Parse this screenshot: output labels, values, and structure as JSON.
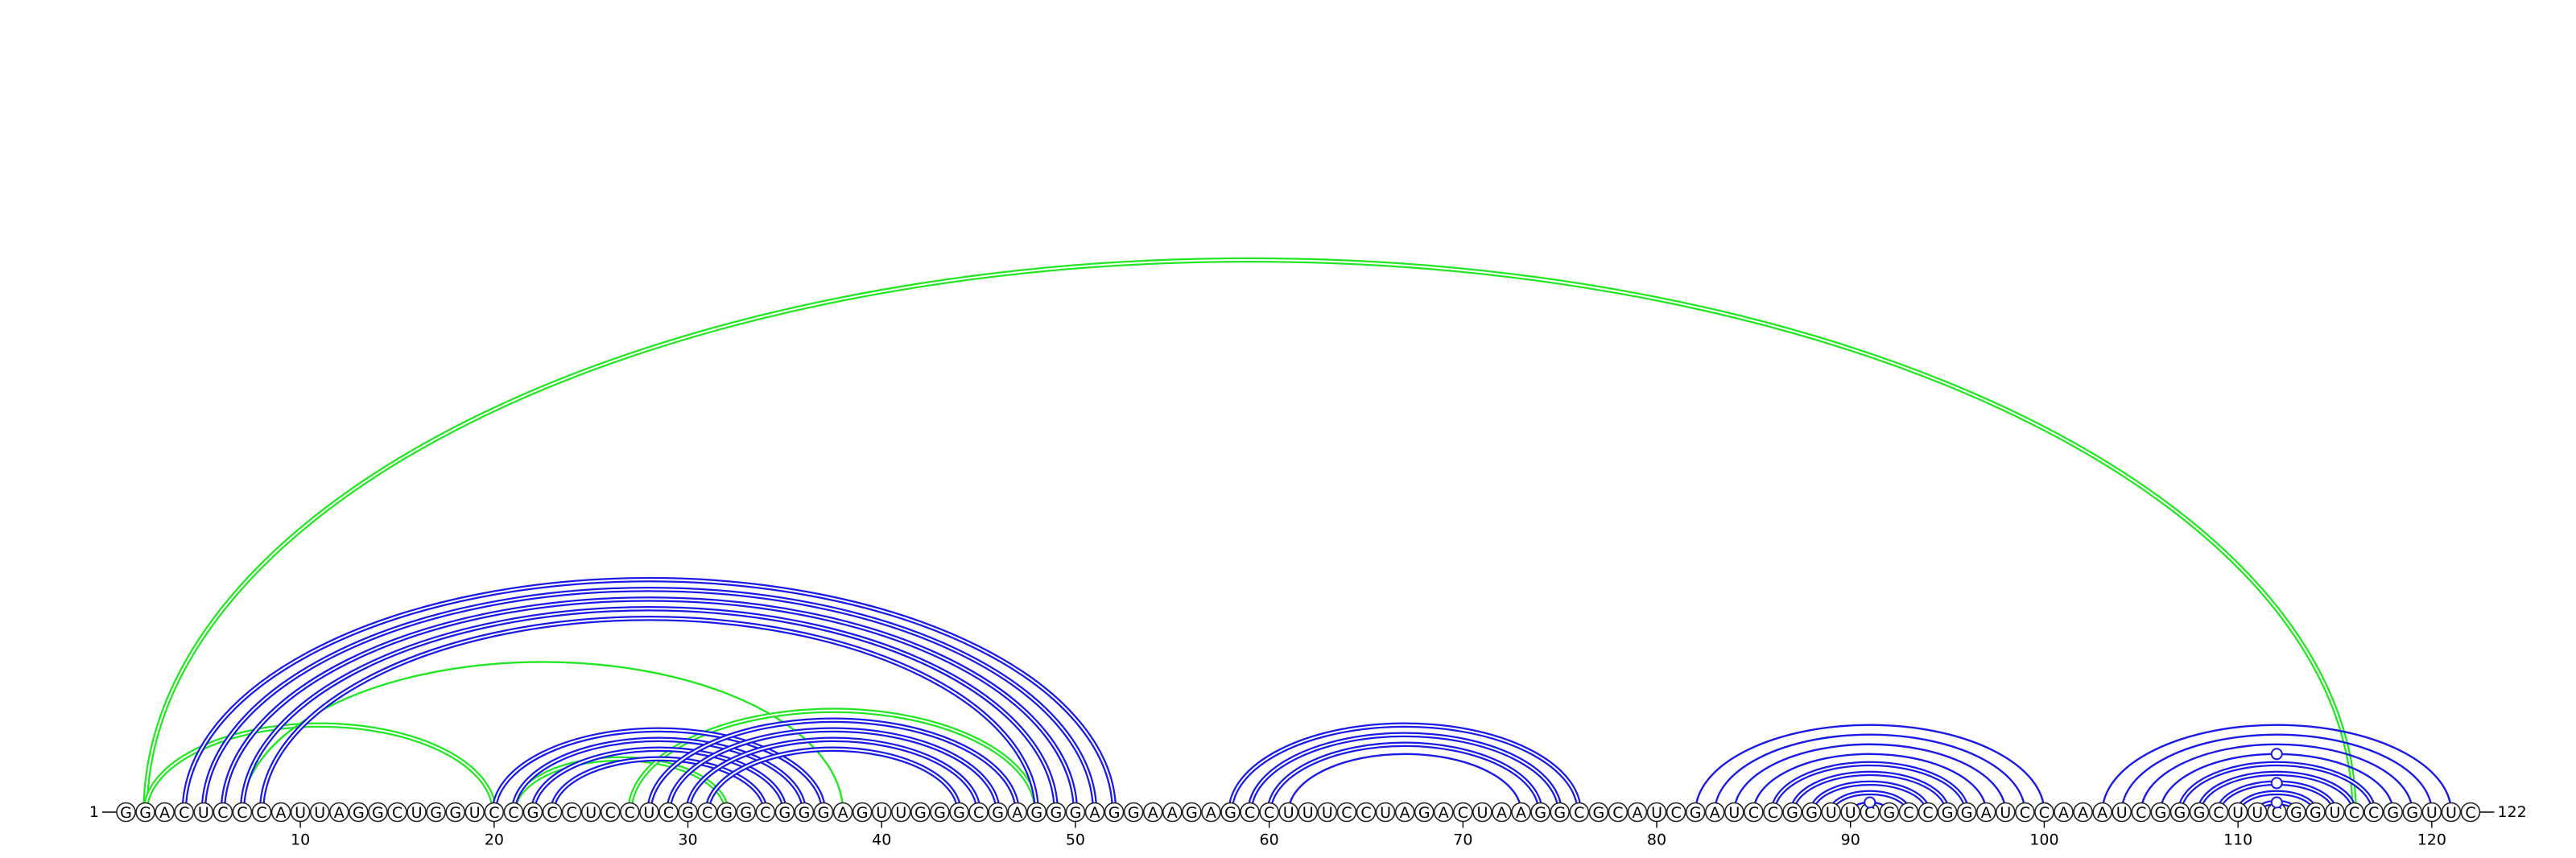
{
  "chart_data": {
    "type": "arc-diagram",
    "sequence": "GGACUCCCAUUAGGCUGGUCCGCCUCCUCGCGGCGGGAGUUGGGCGAGGGAGGAAGAGCCUUUCCUAGACUAAGGCGCAUCGAUCCGGUUCGCCGGAUCCAAAUCGGGCUUCGGUCCGGUUC",
    "start_label": "1",
    "end_label": "122",
    "tick_labels": [
      "10",
      "20",
      "30",
      "40",
      "50",
      "60",
      "70",
      "80",
      "90",
      "100",
      "110",
      "120"
    ],
    "tick_positions": [
      10,
      20,
      30,
      40,
      50,
      60,
      70,
      80,
      90,
      100,
      110,
      120
    ],
    "colors": {
      "blue": "#1a1ae6",
      "green": "#22e622",
      "backbone": "#222222"
    },
    "arcs": [
      {
        "i": 2,
        "j": 116,
        "color": "green",
        "double": true
      },
      {
        "i": 2,
        "j": 20,
        "color": "green",
        "double": true
      },
      {
        "i": 7,
        "j": 38,
        "color": "green",
        "double": false
      },
      {
        "i": 21,
        "j": 32,
        "color": "green",
        "double": true
      },
      {
        "i": 27,
        "j": 48,
        "color": "green",
        "double": true
      },
      {
        "i": 4,
        "j": 52,
        "color": "blue",
        "double": true
      },
      {
        "i": 5,
        "j": 51,
        "color": "blue",
        "double": true
      },
      {
        "i": 6,
        "j": 50,
        "color": "blue",
        "double": true
      },
      {
        "i": 7,
        "j": 49,
        "color": "blue",
        "double": true
      },
      {
        "i": 8,
        "j": 48,
        "color": "blue",
        "double": true
      },
      {
        "i": 20,
        "j": 37,
        "color": "blue",
        "double": true
      },
      {
        "i": 21,
        "j": 36,
        "color": "blue",
        "double": true
      },
      {
        "i": 22,
        "j": 35,
        "color": "blue",
        "double": true
      },
      {
        "i": 23,
        "j": 34,
        "color": "blue",
        "double": true
      },
      {
        "i": 28,
        "j": 47,
        "color": "blue",
        "double": true
      },
      {
        "i": 29,
        "j": 46,
        "color": "blue",
        "double": true
      },
      {
        "i": 30,
        "j": 45,
        "color": "blue",
        "double": true
      },
      {
        "i": 31,
        "j": 44,
        "color": "blue",
        "double": true
      },
      {
        "i": 58,
        "j": 76,
        "color": "blue",
        "double": true
      },
      {
        "i": 59,
        "j": 75,
        "color": "blue",
        "double": true
      },
      {
        "i": 60,
        "j": 74,
        "color": "blue",
        "double": true
      },
      {
        "i": 61,
        "j": 73,
        "color": "blue",
        "double": false
      },
      {
        "i": 82,
        "j": 100,
        "color": "blue",
        "double": false
      },
      {
        "i": 83,
        "j": 99,
        "color": "blue",
        "double": false
      },
      {
        "i": 84,
        "j": 98,
        "color": "blue",
        "double": false
      },
      {
        "i": 85,
        "j": 97,
        "color": "blue",
        "double": false
      },
      {
        "i": 86,
        "j": 96,
        "color": "blue",
        "double": true
      },
      {
        "i": 87,
        "j": 95,
        "color": "blue",
        "double": true
      },
      {
        "i": 88,
        "j": 94,
        "color": "blue",
        "double": true
      },
      {
        "i": 89,
        "j": 93,
        "color": "blue",
        "double": true
      },
      {
        "i": 90,
        "j": 92,
        "color": "blue",
        "double": false
      },
      {
        "i": 103,
        "j": 121,
        "color": "blue",
        "double": false
      },
      {
        "i": 104,
        "j": 120,
        "color": "blue",
        "double": false
      },
      {
        "i": 105,
        "j": 119,
        "color": "blue",
        "double": false
      },
      {
        "i": 106,
        "j": 118,
        "color": "blue",
        "double": false
      },
      {
        "i": 107,
        "j": 117,
        "color": "blue",
        "double": true
      },
      {
        "i": 108,
        "j": 116,
        "color": "blue",
        "double": true
      },
      {
        "i": 109,
        "j": 115,
        "color": "blue",
        "double": true
      },
      {
        "i": 110,
        "j": 114,
        "color": "blue",
        "double": true
      },
      {
        "i": 111,
        "j": 113,
        "color": "blue",
        "double": true
      }
    ],
    "markers": [
      {
        "pos": 91,
        "on_arc": [
          90,
          92
        ]
      },
      {
        "pos": 112,
        "on_arc": [
          111,
          113
        ]
      },
      {
        "pos": 112,
        "on_arc": [
          109,
          115
        ]
      },
      {
        "pos": 112,
        "on_arc": [
          106,
          118
        ]
      }
    ]
  }
}
